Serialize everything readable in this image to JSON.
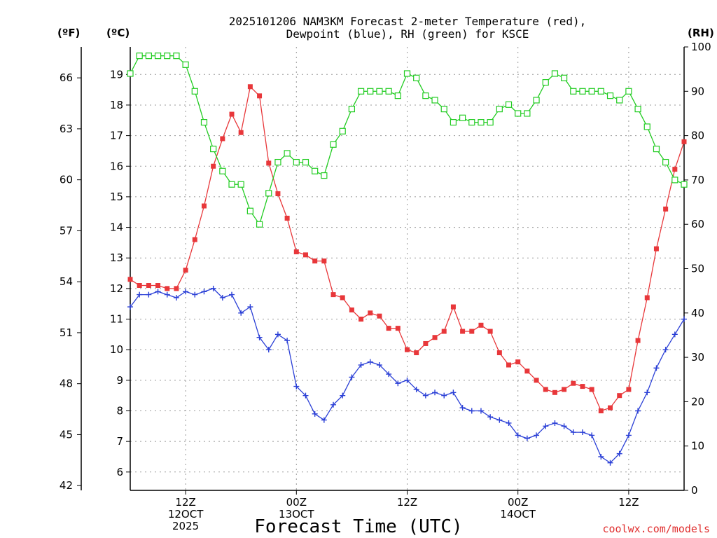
{
  "chart_data": {
    "type": "line",
    "title_lines": [
      "2025101206 NAM3KM Forecast 2-meter Temperature (red),",
      "Dewpoint (blue), RH (green) for KSCE"
    ],
    "xlabel": "Forecast Time (UTC)",
    "credit": "coolwx.com/models",
    "left_unit": "(ºF)",
    "mid_unit": "(ºC)",
    "right_unit": "(RH)",
    "colors": {
      "temperature": "#e8373a",
      "dewpoint": "#2a3fd6",
      "rh": "#22cc22",
      "grid": "#999999"
    },
    "x_range_hours": [
      6,
      66
    ],
    "celsius_ticks": [
      6,
      7,
      8,
      9,
      10,
      11,
      12,
      13,
      14,
      15,
      16,
      17,
      18,
      19
    ],
    "fahrenheit_ticks": [
      42,
      45,
      48,
      51,
      54,
      57,
      60,
      63,
      66
    ],
    "rh_ticks": [
      0,
      10,
      20,
      30,
      40,
      50,
      60,
      70,
      80,
      90,
      100
    ],
    "y_range_celsius": [
      5.4,
      19.9
    ],
    "rh_range": [
      0,
      100
    ],
    "x_ticks": [
      {
        "hour": 12,
        "lines": [
          "12Z",
          "12OCT",
          "2025"
        ]
      },
      {
        "hour": 24,
        "lines": [
          "00Z",
          "13OCT"
        ]
      },
      {
        "hour": 36,
        "lines": [
          "12Z"
        ]
      },
      {
        "hour": 48,
        "lines": [
          "00Z",
          "14OCT"
        ]
      },
      {
        "hour": 60,
        "lines": [
          "12Z"
        ]
      }
    ],
    "series": [
      {
        "name": "Temperature",
        "unit": "C",
        "hours_start": 6,
        "values": [
          12.3,
          12.1,
          12.1,
          12.1,
          12.0,
          12.0,
          12.6,
          13.6,
          14.7,
          16.0,
          16.9,
          17.7,
          17.1,
          18.6,
          18.3,
          16.1,
          15.1,
          14.3,
          13.2,
          13.1,
          12.9,
          12.9,
          11.8,
          11.7,
          11.3,
          11.0,
          11.2,
          11.1,
          10.7,
          10.7,
          10.0,
          9.9,
          10.2,
          10.4,
          10.6,
          11.4,
          10.6,
          10.6,
          10.8,
          10.6,
          9.9,
          9.5,
          9.6,
          9.3,
          9.0,
          8.7,
          8.6,
          8.7,
          8.9,
          8.8,
          8.7,
          8.0,
          8.1,
          8.5,
          8.7,
          10.3,
          11.7,
          13.3,
          14.6,
          15.9,
          16.8
        ]
      },
      {
        "name": "Dewpoint",
        "unit": "C",
        "hours_start": 6,
        "values": [
          11.4,
          11.8,
          11.8,
          11.9,
          11.8,
          11.7,
          11.9,
          11.8,
          11.9,
          12.0,
          11.7,
          11.8,
          11.2,
          11.4,
          10.4,
          10.0,
          10.5,
          10.3,
          8.8,
          8.5,
          7.9,
          7.7,
          8.2,
          8.5,
          9.1,
          9.5,
          9.6,
          9.5,
          9.2,
          8.9,
          9.0,
          8.7,
          8.5,
          8.6,
          8.5,
          8.6,
          8.1,
          8.0,
          8.0,
          7.8,
          7.7,
          7.6,
          7.2,
          7.1,
          7.2,
          7.5,
          7.6,
          7.5,
          7.3,
          7.3,
          7.2,
          6.5,
          6.3,
          6.6,
          7.2,
          8.0,
          8.6,
          9.4,
          10.0,
          10.5,
          11.0
        ]
      },
      {
        "name": "RH",
        "unit": "%",
        "hours_start": 6,
        "values": [
          94,
          98,
          98,
          98,
          98,
          98,
          96,
          90,
          83,
          77,
          72,
          69,
          69,
          63,
          60,
          67,
          74,
          76,
          74,
          74,
          72,
          71,
          78,
          81,
          86,
          90,
          90,
          90,
          90,
          89,
          94,
          93,
          89,
          88,
          86,
          83,
          84,
          83,
          83,
          83,
          86,
          87,
          85,
          85,
          88,
          92,
          94,
          93,
          90,
          90,
          90,
          90,
          89,
          88,
          90,
          86,
          82,
          77,
          74,
          70,
          69
        ]
      }
    ]
  }
}
